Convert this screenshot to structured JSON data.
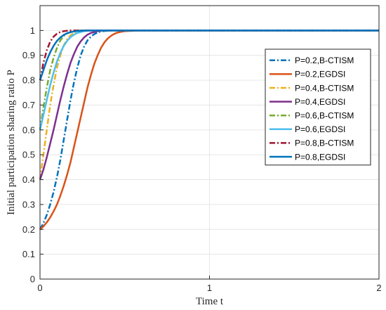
{
  "chart_data": {
    "type": "line",
    "title": "",
    "xlabel": "Time t",
    "ylabel": "Initial participation sharing ratio P",
    "xlim": [
      0,
      2
    ],
    "ylim": [
      0,
      1.1
    ],
    "xticks": [
      "0",
      "1",
      "2"
    ],
    "yticks": [
      "0",
      "0.1",
      "0.2",
      "0.3",
      "0.4",
      "0.5",
      "0.6",
      "0.7",
      "0.8",
      "0.9",
      "1"
    ],
    "grid": true,
    "legend_position": "right",
    "x": [
      0,
      0.02,
      0.04,
      0.06,
      0.08,
      0.1,
      0.12,
      0.14,
      0.16,
      0.18,
      0.2,
      0.22,
      0.24,
      0.26,
      0.28,
      0.3,
      0.32,
      0.34,
      0.36,
      0.38,
      0.4,
      0.42,
      0.44,
      0.46,
      0.48,
      0.5,
      0.55,
      0.6,
      0.7,
      0.8,
      1.0,
      1.5,
      2.0
    ],
    "series": [
      {
        "name": "P=0.2,B-CTISM",
        "color": "#0072BD",
        "dash": "dashdot",
        "values": [
          0.2,
          0.225,
          0.258,
          0.3,
          0.35,
          0.41,
          0.48,
          0.56,
          0.64,
          0.72,
          0.79,
          0.85,
          0.9,
          0.935,
          0.96,
          0.975,
          0.985,
          0.992,
          0.996,
          0.998,
          0.999,
          1,
          1,
          1,
          1,
          1,
          1,
          1,
          1,
          1,
          1,
          1,
          1
        ]
      },
      {
        "name": "P=0.2,EGDSI",
        "color": "#D95319",
        "dash": "solid",
        "values": [
          0.2,
          0.212,
          0.228,
          0.248,
          0.272,
          0.3,
          0.335,
          0.375,
          0.42,
          0.47,
          0.53,
          0.59,
          0.65,
          0.71,
          0.77,
          0.82,
          0.865,
          0.9,
          0.93,
          0.952,
          0.968,
          0.979,
          0.987,
          0.992,
          0.995,
          0.997,
          0.999,
          1,
          1,
          1,
          1,
          1,
          1
        ]
      },
      {
        "name": "P=0.4,B-CTISM",
        "color": "#EDB120",
        "dash": "dashdot",
        "values": [
          0.4,
          0.5,
          0.6,
          0.7,
          0.78,
          0.85,
          0.9,
          0.94,
          0.965,
          0.98,
          0.99,
          0.995,
          0.998,
          1,
          1,
          1,
          1,
          1,
          1,
          1,
          1,
          1,
          1,
          1,
          1,
          1,
          1,
          1,
          1,
          1,
          1,
          1,
          1
        ]
      },
      {
        "name": "P=0.4,EGDSI",
        "color": "#7E2F8E",
        "dash": "solid",
        "values": [
          0.4,
          0.44,
          0.49,
          0.545,
          0.6,
          0.66,
          0.72,
          0.775,
          0.825,
          0.87,
          0.905,
          0.935,
          0.956,
          0.972,
          0.983,
          0.99,
          0.994,
          0.997,
          0.999,
          1,
          1,
          1,
          1,
          1,
          1,
          1,
          1,
          1,
          1,
          1,
          1,
          1,
          1
        ]
      },
      {
        "name": "P=0.6,B-CTISM",
        "color": "#77AC30",
        "dash": "dashdot",
        "values": [
          0.6,
          0.69,
          0.77,
          0.84,
          0.89,
          0.93,
          0.96,
          0.978,
          0.988,
          0.994,
          0.997,
          0.999,
          1,
          1,
          1,
          1,
          1,
          1,
          1,
          1,
          1,
          1,
          1,
          1,
          1,
          1,
          1,
          1,
          1,
          1,
          1,
          1,
          1
        ]
      },
      {
        "name": "P=0.6,EGDSI",
        "color": "#4DBEEE",
        "dash": "solid",
        "values": [
          0.6,
          0.66,
          0.72,
          0.78,
          0.83,
          0.875,
          0.91,
          0.938,
          0.958,
          0.973,
          0.983,
          0.99,
          0.994,
          0.997,
          0.999,
          1,
          1,
          1,
          1,
          1,
          1,
          1,
          1,
          1,
          1,
          1,
          1,
          1,
          1,
          1,
          1,
          1,
          1
        ]
      },
      {
        "name": "P=0.8,B-CTISM",
        "color": "#A2142F",
        "dash": "dashdot",
        "values": [
          0.8,
          0.87,
          0.92,
          0.955,
          0.975,
          0.987,
          0.994,
          0.997,
          0.999,
          1,
          1,
          1,
          1,
          1,
          1,
          1,
          1,
          1,
          1,
          1,
          1,
          1,
          1,
          1,
          1,
          1,
          1,
          1,
          1,
          1,
          1,
          1,
          1
        ]
      },
      {
        "name": "P=0.8,EGDSI",
        "color": "#0072BD",
        "dash": "solid",
        "values": [
          0.8,
          0.84,
          0.88,
          0.912,
          0.938,
          0.958,
          0.972,
          0.982,
          0.989,
          0.993,
          0.996,
          0.998,
          0.999,
          1,
          1,
          1,
          1,
          1,
          1,
          1,
          1,
          1,
          1,
          1,
          1,
          1,
          1,
          1,
          1,
          1,
          1,
          1,
          1
        ]
      }
    ]
  }
}
